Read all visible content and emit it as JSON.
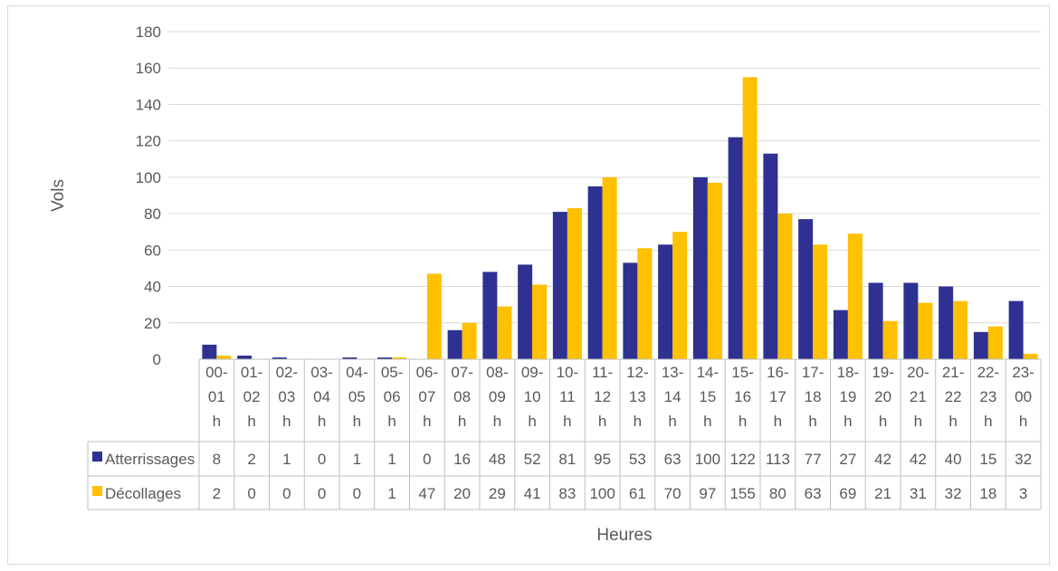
{
  "chart_data": {
    "type": "bar",
    "xlabel": "Heures",
    "ylabel": "Vols",
    "ylim": [
      0,
      180
    ],
    "yticks": [
      0,
      20,
      40,
      60,
      80,
      100,
      120,
      140,
      160,
      180
    ],
    "grid": true,
    "categories": [
      [
        "00-",
        "01",
        "h"
      ],
      [
        "01-",
        "02",
        "h"
      ],
      [
        "02-",
        "03",
        "h"
      ],
      [
        "03-",
        "04",
        "h"
      ],
      [
        "04-",
        "05",
        "h"
      ],
      [
        "05-",
        "06",
        "h"
      ],
      [
        "06-",
        "07",
        "h"
      ],
      [
        "07-",
        "08",
        "h"
      ],
      [
        "08-",
        "09",
        "h"
      ],
      [
        "09-",
        "10",
        "h"
      ],
      [
        "10-",
        "11",
        "h"
      ],
      [
        "11-",
        "12",
        "h"
      ],
      [
        "12-",
        "13",
        "h"
      ],
      [
        "13-",
        "14",
        "h"
      ],
      [
        "14-",
        "15",
        "h"
      ],
      [
        "15-",
        "16",
        "h"
      ],
      [
        "16-",
        "17",
        "h"
      ],
      [
        "17-",
        "18",
        "h"
      ],
      [
        "18-",
        "19",
        "h"
      ],
      [
        "19-",
        "20",
        "h"
      ],
      [
        "20-",
        "21",
        "h"
      ],
      [
        "21-",
        "22",
        "h"
      ],
      [
        "22-",
        "23",
        "h"
      ],
      [
        "23-",
        "00",
        "h"
      ]
    ],
    "series": [
      {
        "name": "Atterrissages",
        "color": "#2e3192",
        "values": [
          8,
          2,
          1,
          0,
          1,
          1,
          0,
          16,
          48,
          52,
          81,
          95,
          53,
          63,
          100,
          122,
          113,
          77,
          27,
          42,
          42,
          40,
          15,
          32
        ]
      },
      {
        "name": "Décollages",
        "color": "#ffc000",
        "values": [
          2,
          0,
          0,
          0,
          0,
          1,
          47,
          20,
          29,
          41,
          83,
          100,
          61,
          70,
          97,
          155,
          80,
          63,
          69,
          21,
          31,
          32,
          18,
          3
        ]
      }
    ]
  }
}
